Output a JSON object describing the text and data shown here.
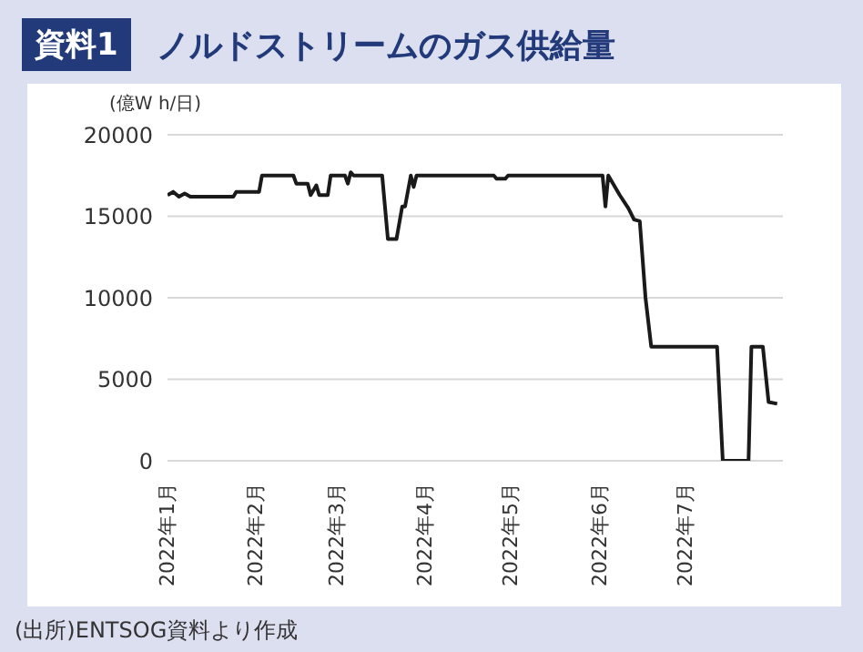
{
  "chart_data": {
    "type": "line",
    "title": "ノルドストリームのガス供給量",
    "ylabel": "(億W h/日)",
    "annotations": [
      "資料1",
      "(出所)ENTSOG資料より作成"
    ],
    "x": [
      "2022-01-01",
      "2022-01-03",
      "2022-01-05",
      "2022-01-07",
      "2022-01-09",
      "2022-01-24",
      "2022-01-25",
      "2022-02-02",
      "2022-02-03",
      "2022-02-14",
      "2022-02-15",
      "2022-02-19",
      "2022-02-20",
      "2022-02-22",
      "2022-02-23",
      "2022-02-26",
      "2022-02-27",
      "2022-03-04",
      "2022-03-05",
      "2022-03-06",
      "2022-03-07",
      "2022-03-17",
      "2022-03-19",
      "2022-03-22",
      "2022-03-24",
      "2022-03-25",
      "2022-03-27",
      "2022-03-28",
      "2022-03-29",
      "2022-04-25",
      "2022-04-26",
      "2022-04-29",
      "2022-04-30",
      "2022-06-02",
      "2022-06-03",
      "2022-06-04",
      "2022-06-08",
      "2022-06-11",
      "2022-06-13",
      "2022-06-15",
      "2022-06-17",
      "2022-06-19",
      "2022-07-12",
      "2022-07-14",
      "2022-07-23",
      "2022-07-24",
      "2022-07-28",
      "2022-07-30",
      "2022-08-02"
    ],
    "series": [
      {
        "color": "#1a1a1a",
        "values": [
          16300,
          16500,
          16200,
          16400,
          16200,
          16200,
          16500,
          16500,
          17500,
          17500,
          17000,
          17000,
          16300,
          16900,
          16300,
          16300,
          17500,
          17500,
          17000,
          17700,
          17500,
          17500,
          13600,
          13600,
          15600,
          15600,
          17500,
          16800,
          17500,
          17500,
          17300,
          17300,
          17500,
          17500,
          15600,
          17500,
          16300,
          15500,
          14800,
          14700,
          10000,
          7000,
          7000,
          0,
          0,
          7000,
          7000,
          3600,
          3500
        ]
      }
    ],
    "xlim": [
      "2022-01-01",
      "2022-08-04"
    ],
    "xticks": [
      {
        "value": "2022-01-01",
        "label": "2022年1月"
      },
      {
        "value": "2022-02-01",
        "label": "2022年2月"
      },
      {
        "value": "2022-03-01",
        "label": "2022年3月"
      },
      {
        "value": "2022-04-01",
        "label": "2022年4月"
      },
      {
        "value": "2022-05-01",
        "label": "2022年5月"
      },
      {
        "value": "2022-06-01",
        "label": "2022年6月"
      },
      {
        "value": "2022-07-01",
        "label": "2022年7月"
      }
    ],
    "ylim": [
      0,
      20000
    ],
    "yticks": [
      0,
      5000,
      10000,
      15000,
      20000
    ],
    "grid": "y",
    "legend": false,
    "marker": "none",
    "line_style": "solid"
  }
}
